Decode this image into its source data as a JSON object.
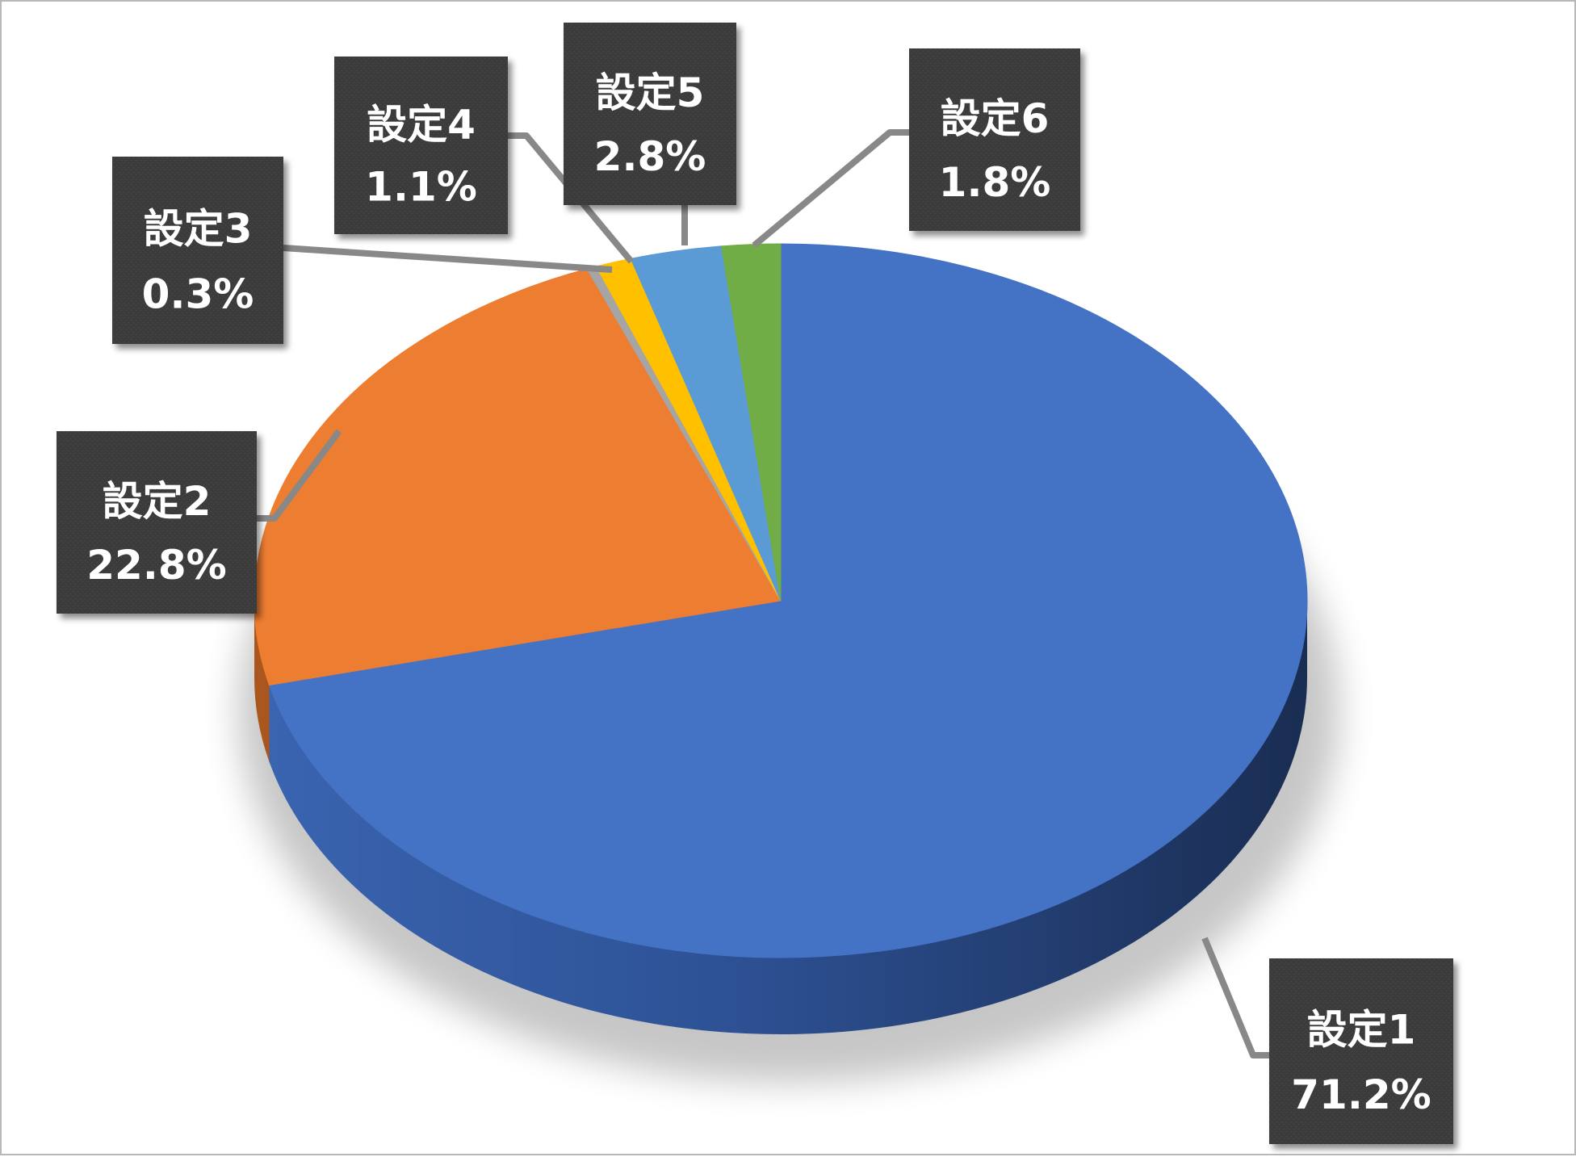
{
  "chart_data": {
    "type": "pie",
    "style": "3d",
    "start_angle": "12 o'clock",
    "direction": "clockwise",
    "slices": [
      {
        "name": "設定1",
        "value": 71.2,
        "label": "71.2%",
        "color": "#4472c4",
        "side_color": "#2c4d8c"
      },
      {
        "name": "設定2",
        "value": 22.8,
        "label": "22.8%",
        "color": "#ed7d31",
        "side_color": "#a9571f"
      },
      {
        "name": "設定3",
        "value": 0.3,
        "label": "0.3%",
        "color": "#a5a5a5",
        "side_color": "#6e6e6e"
      },
      {
        "name": "設定4",
        "value": 1.1,
        "label": "1.1%",
        "color": "#ffc000",
        "side_color": "#b08500"
      },
      {
        "name": "設定5",
        "value": 2.8,
        "label": "2.8%",
        "color": "#5b9bd5",
        "side_color": "#3c6e9c"
      },
      {
        "name": "設定6",
        "value": 1.8,
        "label": "1.8%",
        "color": "#70ad47",
        "side_color": "#4d7a30"
      }
    ],
    "label_box_color": "#3a3a3a",
    "leader_line_color": "#888888"
  }
}
